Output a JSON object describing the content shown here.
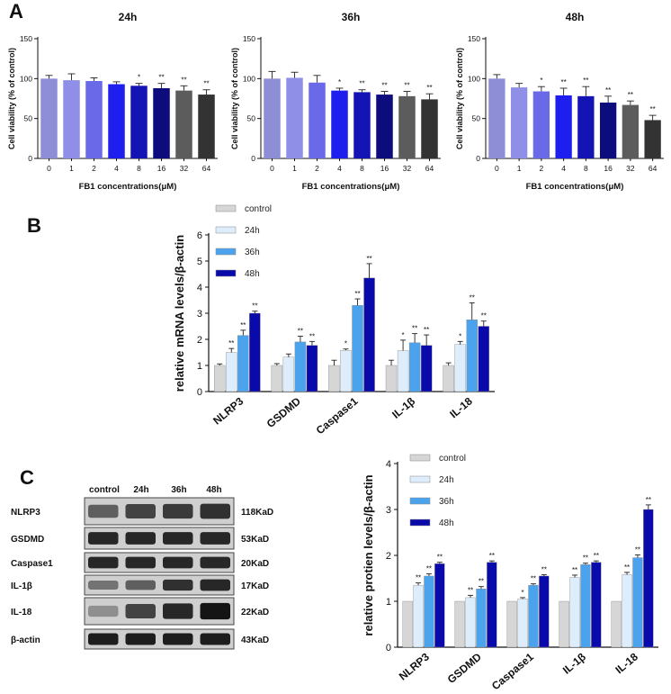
{
  "panel_labels": {
    "a": "A",
    "b": "B",
    "c": "C"
  },
  "colors": {
    "bars_a": [
      "#8e8ed6",
      "#8f8fe8",
      "#6a6ae8",
      "#1e1eee",
      "#1414b4",
      "#0c0c7c",
      "#5c5c5c",
      "#333333"
    ],
    "legend": {
      "control": "#d6d6d6",
      "24h": "#deedfb",
      "36h": "#4aa3ec",
      "48h": "#0a0aaa"
    }
  },
  "chart_data": [
    {
      "id": "a1",
      "type": "bar",
      "title": "24h",
      "categories": [
        "0",
        "1",
        "2",
        "4",
        "8",
        "16",
        "32",
        "64"
      ],
      "values": [
        100,
        98,
        97,
        93,
        91,
        88,
        85,
        80
      ],
      "errors": [
        4,
        8,
        4,
        3,
        3,
        6,
        6,
        6
      ],
      "annotations": [
        "",
        "",
        "",
        "",
        "*",
        "**",
        "**",
        "**"
      ],
      "ylabel": "Cell viability (% of control)",
      "xlabel": "FB1 concentrations(μM)",
      "ylim": [
        0,
        150
      ],
      "yticks": [
        "0",
        "50",
        "100",
        "150"
      ]
    },
    {
      "id": "a2",
      "type": "bar",
      "title": "36h",
      "categories": [
        "0",
        "1",
        "2",
        "4",
        "8",
        "16",
        "32",
        "64"
      ],
      "values": [
        100,
        101,
        95,
        85,
        83,
        80,
        78,
        74
      ],
      "errors": [
        9,
        7,
        9,
        3,
        3,
        4,
        6,
        7
      ],
      "annotations": [
        "",
        "",
        "",
        "*",
        "**",
        "**",
        "**",
        "**"
      ],
      "ylabel": "Cell viability (% of control)",
      "xlabel": "FB1 concentrations(μM)",
      "ylim": [
        0,
        150
      ],
      "yticks": [
        "0",
        "50",
        "100",
        "150"
      ]
    },
    {
      "id": "a3",
      "type": "bar",
      "title": "48h",
      "categories": [
        "0",
        "1",
        "2",
        "4",
        "8",
        "16",
        "32",
        "64"
      ],
      "values": [
        100,
        89,
        84,
        79,
        78,
        70,
        67,
        48
      ],
      "errors": [
        5,
        5,
        6,
        9,
        12,
        8,
        5,
        6
      ],
      "annotations": [
        "",
        "",
        "*",
        "**",
        "**",
        "**",
        "**",
        "**"
      ],
      "ylabel": "Cell viability (% of control)",
      "xlabel": "FB1 concentrations(μM)",
      "ylim": [
        0,
        150
      ],
      "yticks": [
        "0",
        "50",
        "100",
        "150"
      ]
    },
    {
      "id": "b",
      "type": "bar",
      "categories": [
        "NLRP3",
        "GSDMD",
        "Caspase1",
        "IL-1β",
        "IL-18"
      ],
      "series": [
        {
          "name": "control",
          "values": [
            1.0,
            1.0,
            1.0,
            1.0,
            1.0
          ],
          "errors": [
            0.06,
            0.07,
            0.2,
            0.2,
            0.1
          ],
          "annotations": [
            "",
            "",
            "",
            "",
            ""
          ]
        },
        {
          "name": "24h",
          "values": [
            1.5,
            1.32,
            1.58,
            1.57,
            1.8
          ],
          "errors": [
            0.15,
            0.12,
            0.05,
            0.4,
            0.12
          ],
          "annotations": [
            "**",
            "",
            "*",
            "*",
            "*"
          ]
        },
        {
          "name": "36h",
          "values": [
            2.15,
            1.9,
            3.3,
            1.87,
            2.75
          ],
          "errors": [
            0.2,
            0.22,
            0.25,
            0.35,
            0.65
          ],
          "annotations": [
            "**",
            "**",
            "**",
            "**",
            "**"
          ]
        },
        {
          "name": "48h",
          "values": [
            3.0,
            1.77,
            4.35,
            1.77,
            2.5
          ],
          "errors": [
            0.08,
            0.15,
            0.55,
            0.4,
            0.2
          ],
          "annotations": [
            "**",
            "**",
            "**",
            "**",
            "**"
          ]
        }
      ],
      "ylabel": "relative mRNA levels/β-actin",
      "ylim": [
        0,
        6
      ],
      "yticks": [
        "0",
        "1",
        "2",
        "3",
        "4",
        "5",
        "6"
      ]
    },
    {
      "id": "c",
      "type": "bar",
      "categories": [
        "NLRP3",
        "GSDMD",
        "Caspase1",
        "IL-1β",
        "IL-18"
      ],
      "series": [
        {
          "name": "control",
          "values": [
            1.0,
            1.0,
            1.0,
            1.0,
            1.0
          ],
          "errors": [
            0,
            0,
            0,
            0,
            0
          ],
          "annotations": [
            "",
            "",
            "",
            "",
            ""
          ]
        },
        {
          "name": "24h",
          "values": [
            1.35,
            1.08,
            1.05,
            1.52,
            1.58
          ],
          "errors": [
            0.05,
            0.05,
            0.03,
            0.05,
            0.05
          ],
          "annotations": [
            "**",
            "**",
            "*",
            "**",
            "**"
          ]
        },
        {
          "name": "36h",
          "values": [
            1.55,
            1.27,
            1.35,
            1.8,
            1.95
          ],
          "errors": [
            0.05,
            0.05,
            0.03,
            0.03,
            0.06
          ],
          "annotations": [
            "**",
            "**",
            "**",
            "**",
            "**"
          ]
        },
        {
          "name": "48h",
          "values": [
            1.82,
            1.85,
            1.55,
            1.85,
            3.0
          ],
          "errors": [
            0.03,
            0.03,
            0.03,
            0.03,
            0.1
          ],
          "annotations": [
            "**",
            "**",
            "**",
            "**",
            "**"
          ]
        }
      ],
      "ylabel": "relative protien levels/β-actin",
      "ylim": [
        0,
        4
      ],
      "yticks": [
        "0",
        "1",
        "2",
        "3",
        "4"
      ]
    }
  ],
  "western_blot": {
    "columns": [
      "control",
      "24h",
      "36h",
      "48h"
    ],
    "rows": [
      {
        "protein": "NLRP3",
        "size": "118KaD"
      },
      {
        "protein": "GSDMD",
        "size": "53KaD"
      },
      {
        "protein": "Caspase1",
        "size": "20KaD"
      },
      {
        "protein": "IL-1β",
        "size": "17KaD"
      },
      {
        "protein": "IL-18",
        "size": "22KaD"
      },
      {
        "protein": "β-actin",
        "size": "43KaD"
      }
    ],
    "band_intensity": [
      [
        0.55,
        0.7,
        0.75,
        0.8
      ],
      [
        0.85,
        0.85,
        0.85,
        0.85
      ],
      [
        0.85,
        0.85,
        0.85,
        0.85
      ],
      [
        0.45,
        0.55,
        0.8,
        0.85
      ],
      [
        0.3,
        0.7,
        0.85,
        0.95
      ],
      [
        0.9,
        0.9,
        0.9,
        0.9
      ]
    ]
  }
}
